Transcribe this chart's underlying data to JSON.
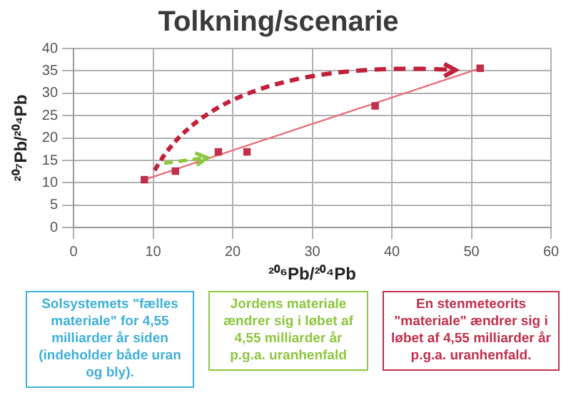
{
  "chart_data": {
    "type": "scatter",
    "title": "Tolkning/scenarie",
    "xlabel": "²⁰⁶Pb/²⁰⁴Pb",
    "ylabel": "²⁰⁷Pb/²⁰⁴Pb",
    "x": [
      8.9,
      12.8,
      18.2,
      21.8,
      37.9,
      51.1
    ],
    "series": [
      {
        "type": "scatter",
        "color": "#c0304a",
        "values": [
          10.7,
          12.6,
          16.9,
          16.9,
          27.2,
          35.6
        ]
      },
      {
        "type": "line",
        "x": [
          8.9,
          51.1
        ],
        "color": "#e8707a",
        "marker": "none",
        "values": [
          10.7,
          35.6
        ]
      }
    ],
    "xlim": [
      0,
      60
    ],
    "xticks": [
      0,
      10,
      20,
      30,
      40,
      50,
      60
    ],
    "ylim": [
      0,
      40
    ],
    "yticks": [
      0,
      5,
      10,
      15,
      20,
      25,
      30,
      35,
      40
    ],
    "grid": true,
    "marker": "square",
    "annotations": [
      "Solsystemets \"fælles materiale\" for 4,55 milliarder år siden (indeholder både uran og bly).",
      "Jordens materiale ændrer sig i løbet af 4,55 milliarder år p.g.a. uranhenfald",
      "En stenmeteorits \"materiale\" ændrer sig i løbet af 4,55 milliarder år p.g.a. uranhenfald."
    ]
  }
}
